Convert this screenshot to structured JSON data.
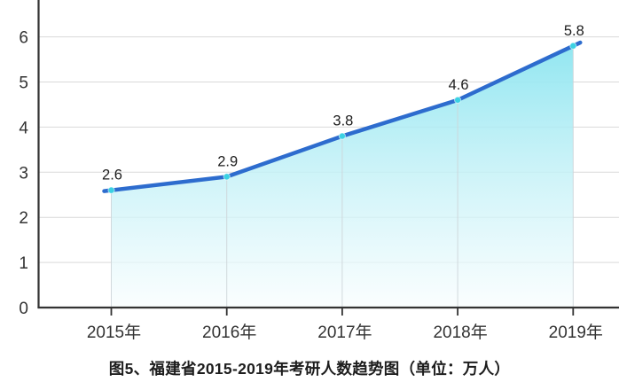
{
  "chart_data": {
    "type": "area",
    "title": "图5、福建省2015-2019年考研人数趋势图（单位：万人）",
    "categories": [
      "2015年",
      "2016年",
      "2017年",
      "2018年",
      "2019年"
    ],
    "values": [
      2.6,
      2.9,
      3.8,
      4.6,
      5.8
    ],
    "data_labels": [
      "2.6",
      "2.9",
      "3.8",
      "4.6",
      "5.8"
    ],
    "xlabel": "",
    "ylabel": "",
    "unit": "万人",
    "ylim": [
      0,
      6.8
    ],
    "yticks": [
      0,
      1,
      2,
      3,
      4,
      5,
      6
    ],
    "grid": true,
    "legend_position": "none"
  },
  "colors": {
    "line": "#2d6cce",
    "marker": "#3bd1e3",
    "fill_top": "#8ce5f0",
    "fill_mid": "#c3f1f7",
    "fill_bottom": "#f8fdfe",
    "gridline": "#d9d9d9",
    "drop_line": "#cdd5d9",
    "axis": "#333333",
    "axis_label": "#333333",
    "data_label": "#1d1d1d"
  }
}
